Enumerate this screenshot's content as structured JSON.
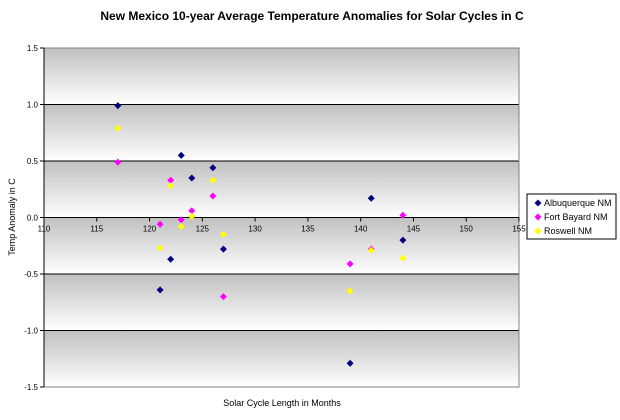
{
  "chart_data": {
    "type": "scatter",
    "title": "New Mexico 10-year Average Temperature Anomalies for Solar Cycles in C",
    "xlabel": "Solar Cycle Length in Months",
    "ylabel": "Temp Anomaly in C",
    "xlim": [
      110,
      155
    ],
    "ylim": [
      -1.5,
      1.5
    ],
    "x_ticks": [
      "110",
      "115",
      "120",
      "125",
      "130",
      "135",
      "140",
      "145",
      "150",
      "155"
    ],
    "y_ticks": [
      "1.5",
      "1.0",
      "0.5",
      "0.0",
      "-0.5",
      "-1.0",
      "-1.5"
    ],
    "grid": true,
    "legend_position": "right",
    "plot_background_colors": [
      "#c0c0c0",
      "#ffffff"
    ],
    "series": [
      {
        "name": "Albuquerque NM",
        "color": "#000080",
        "marker": "diamond",
        "points": [
          [
            117,
            0.99
          ],
          [
            121,
            -0.64
          ],
          [
            122,
            -0.37
          ],
          [
            123,
            0.55
          ],
          [
            124,
            0.35
          ],
          [
            126,
            0.44
          ],
          [
            127,
            -0.28
          ],
          [
            139,
            -1.29
          ],
          [
            141,
            0.17
          ],
          [
            144,
            -0.2
          ]
        ]
      },
      {
        "name": "Fort Bayard NM",
        "color": "#ff00ff",
        "marker": "diamond",
        "points": [
          [
            117,
            0.49
          ],
          [
            121,
            -0.06
          ],
          [
            122,
            0.33
          ],
          [
            123,
            -0.02
          ],
          [
            124,
            0.06
          ],
          [
            126,
            0.19
          ],
          [
            127,
            -0.7
          ],
          [
            139,
            -0.41
          ],
          [
            141,
            -0.28
          ],
          [
            144,
            0.02
          ]
        ]
      },
      {
        "name": "Roswell NM",
        "color": "#ffff00",
        "marker": "diamond",
        "points": [
          [
            117,
            0.79
          ],
          [
            121,
            -0.27
          ],
          [
            122,
            0.28
          ],
          [
            123,
            -0.08
          ],
          [
            124,
            0.01
          ],
          [
            126,
            0.33
          ],
          [
            127,
            -0.15
          ],
          [
            139,
            -0.65
          ],
          [
            141,
            -0.29
          ],
          [
            144,
            -0.36
          ]
        ]
      }
    ]
  }
}
